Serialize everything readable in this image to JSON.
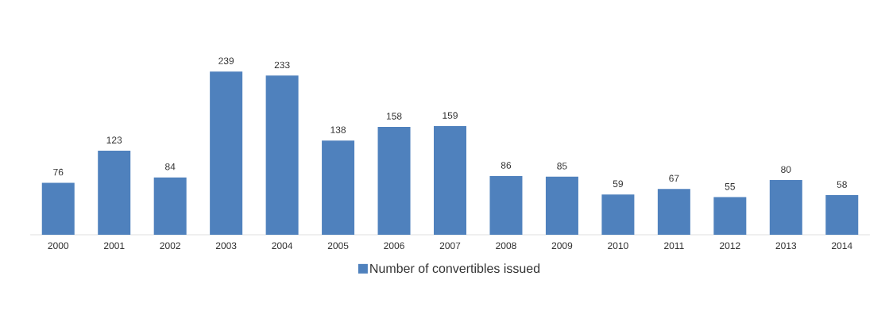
{
  "chart_data": {
    "type": "bar",
    "categories": [
      "2000",
      "2001",
      "2002",
      "2003",
      "2004",
      "2005",
      "2006",
      "2007",
      "2008",
      "2009",
      "2010",
      "2011",
      "2012",
      "2013",
      "2014"
    ],
    "series": [
      {
        "name": "Number of convertibles issued",
        "color": "#4f81bd",
        "values": [
          76,
          123,
          84,
          239,
          233,
          138,
          158,
          159,
          86,
          85,
          59,
          67,
          55,
          80,
          58
        ]
      }
    ],
    "data_labels": true,
    "legend": "bottom"
  }
}
